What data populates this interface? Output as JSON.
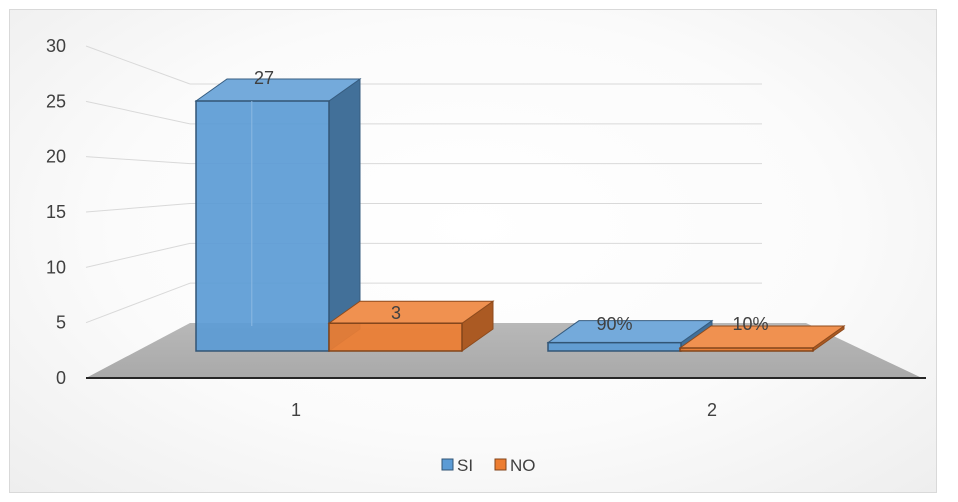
{
  "chart_data": {
    "type": "bar",
    "style": "3d-clustered-column",
    "categories": [
      "1",
      "2"
    ],
    "series": [
      {
        "name": "SI",
        "values": [
          27,
          0.9
        ],
        "data_labels": [
          "27",
          "90%"
        ],
        "color": "#5b9bd5"
      },
      {
        "name": "NO",
        "values": [
          3,
          0.1
        ],
        "data_labels": [
          "3",
          "10%"
        ],
        "color": "#ed7d31"
      }
    ],
    "y_ticks": [
      "0",
      "5",
      "10",
      "15",
      "20",
      "25",
      "30"
    ],
    "ylim": [
      0,
      30
    ],
    "grid": true,
    "legend": "bottom",
    "title": "",
    "xlabel": "",
    "ylabel": ""
  }
}
